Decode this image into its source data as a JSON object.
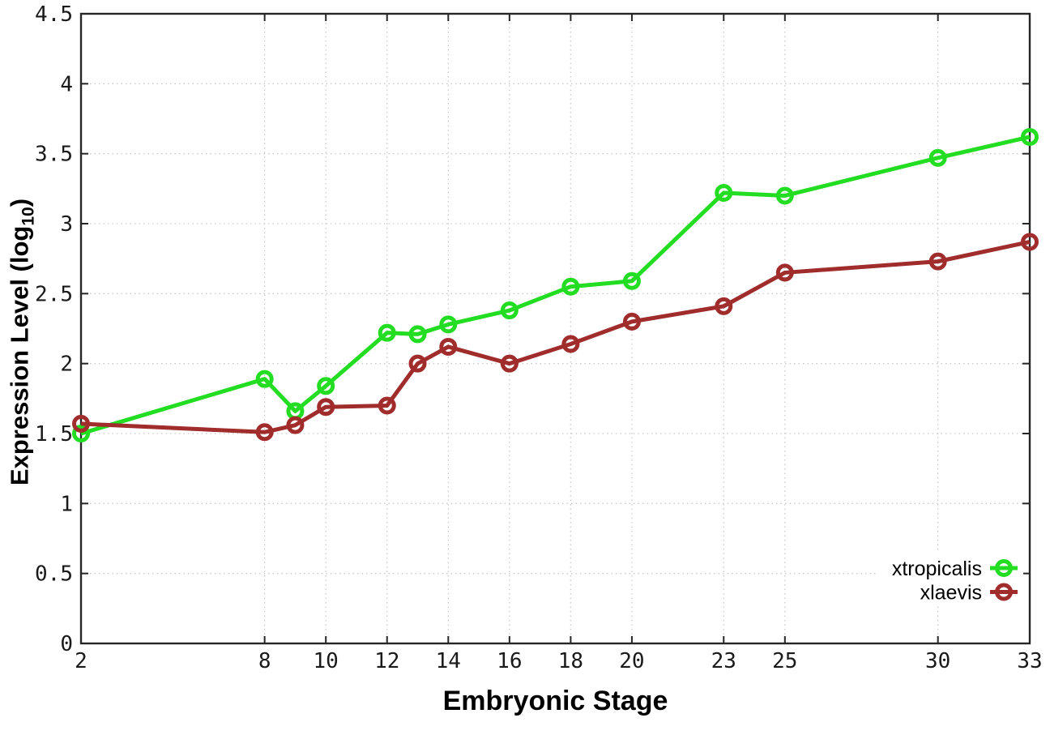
{
  "chart_data": {
    "type": "line",
    "title": "",
    "xlabel": "Embryonic Stage",
    "ylabel": "Expression Level (log10)",
    "ylabel_parts": {
      "prefix": "Expression Level (log",
      "sub": "10",
      "suffix": ")"
    },
    "xlim": [
      2,
      33
    ],
    "ylim": [
      0,
      4.5
    ],
    "x_ticks": [
      2,
      8,
      10,
      12,
      14,
      16,
      18,
      20,
      23,
      25,
      30,
      33
    ],
    "x_tick_labels": [
      "2",
      "8",
      "10",
      "12",
      "14",
      "16",
      "18",
      "20",
      "23",
      "25",
      "30",
      "33"
    ],
    "y_ticks": [
      0,
      0.5,
      1,
      1.5,
      2,
      2.5,
      3,
      3.5,
      4,
      4.5
    ],
    "y_tick_labels": [
      "0",
      "0.5",
      "1",
      "1.5",
      "2",
      "2.5",
      "3",
      "3.5",
      "4",
      "4.5"
    ],
    "grid": true,
    "legend_position": "inside-bottom-right",
    "marker": "open-circle",
    "colors": {
      "axis": "#262626",
      "grid": "#c9c9c9",
      "background": "#ffffff"
    },
    "x": [
      2,
      8,
      9,
      10,
      12,
      13,
      14,
      16,
      18,
      20,
      23,
      25,
      30,
      33
    ],
    "series": [
      {
        "name": "xtropicalis",
        "color": "#22dd22",
        "values": [
          1.5,
          1.89,
          1.66,
          1.84,
          2.22,
          2.21,
          2.28,
          2.38,
          2.55,
          2.59,
          3.22,
          3.2,
          3.47,
          3.62
        ]
      },
      {
        "name": "xlaevis",
        "color": "#a02c2c",
        "values": [
          1.57,
          1.51,
          1.56,
          1.69,
          1.7,
          2.0,
          2.12,
          2.0,
          2.14,
          2.3,
          2.41,
          2.65,
          2.73,
          2.87
        ]
      }
    ]
  }
}
